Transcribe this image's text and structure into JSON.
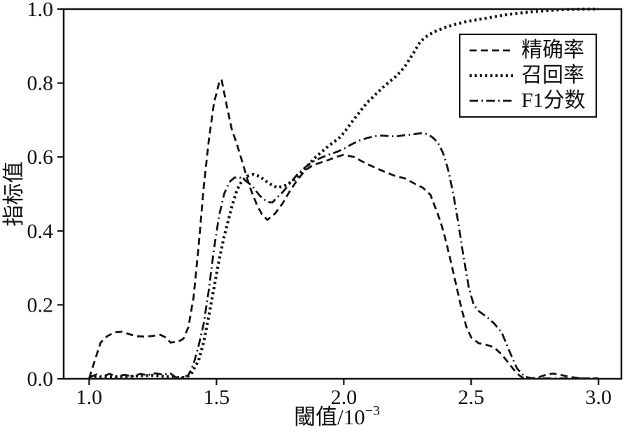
{
  "figure": {
    "background_color": "#ffffff",
    "axis_color": "#111111"
  },
  "chart_data": {
    "type": "line",
    "title": "",
    "xlabel": "閾值/10⁻³",
    "xlabel_parts": {
      "base": "閾值/10",
      "exp": "−3"
    },
    "ylabel": "指标值",
    "xlim": [
      0.9,
      3.09
    ],
    "ylim": [
      0.0,
      1.0
    ],
    "x_ticks": [
      1.0,
      1.5,
      2.0,
      2.5,
      3.0
    ],
    "x_tick_labels": [
      "1.0",
      "1.5",
      "2.0",
      "2.5",
      "3.0"
    ],
    "y_ticks": [
      0.0,
      0.2,
      0.4,
      0.6,
      0.8,
      1.0
    ],
    "y_tick_labels": [
      "0.0",
      "0.2",
      "0.4",
      "0.6",
      "0.8",
      "1.0"
    ],
    "grid": false,
    "legend_position": "upper right",
    "series": [
      {
        "name": "精确率",
        "key": "precision",
        "line_style": "dashed",
        "color": "#111111",
        "points": [
          [
            1.0,
            0.001
          ],
          [
            1.02,
            0.045
          ],
          [
            1.045,
            0.098
          ],
          [
            1.07,
            0.115
          ],
          [
            1.1,
            0.126
          ],
          [
            1.13,
            0.127
          ],
          [
            1.16,
            0.12
          ],
          [
            1.19,
            0.115
          ],
          [
            1.22,
            0.114
          ],
          [
            1.25,
            0.116
          ],
          [
            1.28,
            0.119
          ],
          [
            1.3,
            0.112
          ],
          [
            1.32,
            0.098
          ],
          [
            1.35,
            0.101
          ],
          [
            1.37,
            0.108
          ],
          [
            1.39,
            0.14
          ],
          [
            1.41,
            0.22
          ],
          [
            1.43,
            0.36
          ],
          [
            1.45,
            0.52
          ],
          [
            1.47,
            0.645
          ],
          [
            1.49,
            0.745
          ],
          [
            1.51,
            0.8
          ],
          [
            1.52,
            0.81
          ],
          [
            1.54,
            0.74
          ],
          [
            1.56,
            0.675
          ],
          [
            1.58,
            0.635
          ],
          [
            1.6,
            0.59
          ],
          [
            1.63,
            0.52
          ],
          [
            1.66,
            0.468
          ],
          [
            1.68,
            0.443
          ],
          [
            1.7,
            0.43
          ],
          [
            1.73,
            0.447
          ],
          [
            1.76,
            0.475
          ],
          [
            1.79,
            0.51
          ],
          [
            1.82,
            0.54
          ],
          [
            1.85,
            0.565
          ],
          [
            1.88,
            0.578
          ],
          [
            1.91,
            0.585
          ],
          [
            1.94,
            0.592
          ],
          [
            1.97,
            0.6
          ],
          [
            2.0,
            0.606
          ],
          [
            2.04,
            0.6
          ],
          [
            2.08,
            0.585
          ],
          [
            2.12,
            0.572
          ],
          [
            2.16,
            0.56
          ],
          [
            2.2,
            0.549
          ],
          [
            2.24,
            0.542
          ],
          [
            2.28,
            0.527
          ],
          [
            2.31,
            0.517
          ],
          [
            2.34,
            0.498
          ],
          [
            2.36,
            0.462
          ],
          [
            2.38,
            0.425
          ],
          [
            2.4,
            0.375
          ],
          [
            2.42,
            0.318
          ],
          [
            2.44,
            0.258
          ],
          [
            2.46,
            0.196
          ],
          [
            2.48,
            0.143
          ],
          [
            2.5,
            0.112
          ],
          [
            2.53,
            0.096
          ],
          [
            2.56,
            0.092
          ],
          [
            2.59,
            0.085
          ],
          [
            2.62,
            0.066
          ],
          [
            2.65,
            0.04
          ],
          [
            2.68,
            0.014
          ],
          [
            2.7,
            0.004
          ],
          [
            2.73,
            0.001
          ],
          [
            2.76,
            0.003
          ],
          [
            2.79,
            0.01
          ],
          [
            2.82,
            0.014
          ],
          [
            2.85,
            0.011
          ],
          [
            2.88,
            0.006
          ],
          [
            2.91,
            0.003
          ],
          [
            2.94,
            0.001
          ],
          [
            3.0,
            0.001
          ]
        ]
      },
      {
        "name": "召回率",
        "key": "recall",
        "line_style": "dotted",
        "color": "#111111",
        "points": [
          [
            1.0,
            0.003
          ],
          [
            1.05,
            0.005
          ],
          [
            1.1,
            0.005
          ],
          [
            1.15,
            0.006
          ],
          [
            1.2,
            0.008
          ],
          [
            1.25,
            0.009
          ],
          [
            1.3,
            0.006
          ],
          [
            1.34,
            0.003
          ],
          [
            1.38,
            0.004
          ],
          [
            1.4,
            0.012
          ],
          [
            1.43,
            0.05
          ],
          [
            1.45,
            0.1
          ],
          [
            1.47,
            0.17
          ],
          [
            1.49,
            0.245
          ],
          [
            1.51,
            0.32
          ],
          [
            1.53,
            0.385
          ],
          [
            1.56,
            0.465
          ],
          [
            1.58,
            0.51
          ],
          [
            1.6,
            0.535
          ],
          [
            1.62,
            0.548
          ],
          [
            1.645,
            0.553
          ],
          [
            1.67,
            0.547
          ],
          [
            1.7,
            0.532
          ],
          [
            1.72,
            0.523
          ],
          [
            1.74,
            0.517
          ],
          [
            1.77,
            0.523
          ],
          [
            1.8,
            0.535
          ],
          [
            1.83,
            0.555
          ],
          [
            1.86,
            0.578
          ],
          [
            1.89,
            0.6
          ],
          [
            1.92,
            0.618
          ],
          [
            1.95,
            0.635
          ],
          [
            1.98,
            0.65
          ],
          [
            2.0,
            0.665
          ],
          [
            2.03,
            0.693
          ],
          [
            2.06,
            0.72
          ],
          [
            2.09,
            0.746
          ],
          [
            2.12,
            0.766
          ],
          [
            2.15,
            0.786
          ],
          [
            2.18,
            0.804
          ],
          [
            2.21,
            0.821
          ],
          [
            2.24,
            0.845
          ],
          [
            2.27,
            0.877
          ],
          [
            2.3,
            0.912
          ],
          [
            2.33,
            0.929
          ],
          [
            2.36,
            0.94
          ],
          [
            2.4,
            0.951
          ],
          [
            2.44,
            0.959
          ],
          [
            2.48,
            0.966
          ],
          [
            2.52,
            0.971
          ],
          [
            2.58,
            0.978
          ],
          [
            2.64,
            0.985
          ],
          [
            2.7,
            0.99
          ],
          [
            2.76,
            0.994
          ],
          [
            2.82,
            0.997
          ],
          [
            2.88,
            0.999
          ],
          [
            2.94,
            1.0
          ],
          [
            3.0,
            1.0
          ]
        ]
      },
      {
        "name": "F1分数",
        "key": "f1",
        "line_style": "dashdot",
        "color": "#111111",
        "points": [
          [
            1.0,
            0.004
          ],
          [
            1.03,
            0.012
          ],
          [
            1.05,
            0.006
          ],
          [
            1.08,
            0.013
          ],
          [
            1.11,
            0.007
          ],
          [
            1.14,
            0.011
          ],
          [
            1.17,
            0.006
          ],
          [
            1.2,
            0.013
          ],
          [
            1.23,
            0.01
          ],
          [
            1.26,
            0.015
          ],
          [
            1.29,
            0.011
          ],
          [
            1.32,
            0.014
          ],
          [
            1.34,
            0.004
          ],
          [
            1.37,
            0.003
          ],
          [
            1.39,
            0.01
          ],
          [
            1.41,
            0.04
          ],
          [
            1.43,
            0.09
          ],
          [
            1.45,
            0.15
          ],
          [
            1.47,
            0.24
          ],
          [
            1.49,
            0.35
          ],
          [
            1.51,
            0.44
          ],
          [
            1.53,
            0.5
          ],
          [
            1.55,
            0.532
          ],
          [
            1.57,
            0.544
          ],
          [
            1.59,
            0.545
          ],
          [
            1.61,
            0.538
          ],
          [
            1.64,
            0.522
          ],
          [
            1.67,
            0.495
          ],
          [
            1.7,
            0.478
          ],
          [
            1.72,
            0.477
          ],
          [
            1.73,
            0.485
          ],
          [
            1.76,
            0.505
          ],
          [
            1.79,
            0.53
          ],
          [
            1.82,
            0.555
          ],
          [
            1.85,
            0.573
          ],
          [
            1.88,
            0.588
          ],
          [
            1.91,
            0.598
          ],
          [
            1.94,
            0.606
          ],
          [
            1.97,
            0.613
          ],
          [
            2.0,
            0.622
          ],
          [
            2.03,
            0.634
          ],
          [
            2.06,
            0.644
          ],
          [
            2.09,
            0.651
          ],
          [
            2.12,
            0.656
          ],
          [
            2.15,
            0.658
          ],
          [
            2.18,
            0.656
          ],
          [
            2.21,
            0.656
          ],
          [
            2.24,
            0.659
          ],
          [
            2.27,
            0.661
          ],
          [
            2.3,
            0.664
          ],
          [
            2.33,
            0.662
          ],
          [
            2.35,
            0.652
          ],
          [
            2.37,
            0.638
          ],
          [
            2.39,
            0.61
          ],
          [
            2.41,
            0.565
          ],
          [
            2.43,
            0.5
          ],
          [
            2.45,
            0.42
          ],
          [
            2.47,
            0.33
          ],
          [
            2.49,
            0.25
          ],
          [
            2.51,
            0.2
          ],
          [
            2.53,
            0.183
          ],
          [
            2.56,
            0.168
          ],
          [
            2.59,
            0.15
          ],
          [
            2.62,
            0.125
          ],
          [
            2.65,
            0.075
          ],
          [
            2.68,
            0.028
          ],
          [
            2.71,
            0.006
          ],
          [
            2.74,
            0.001
          ],
          [
            3.0,
            0.001
          ]
        ]
      }
    ]
  },
  "legend": {
    "items": [
      {
        "series_key": "precision",
        "label": "精确率"
      },
      {
        "series_key": "recall",
        "label": "召回率"
      },
      {
        "series_key": "f1",
        "label": "F1分数"
      }
    ]
  }
}
